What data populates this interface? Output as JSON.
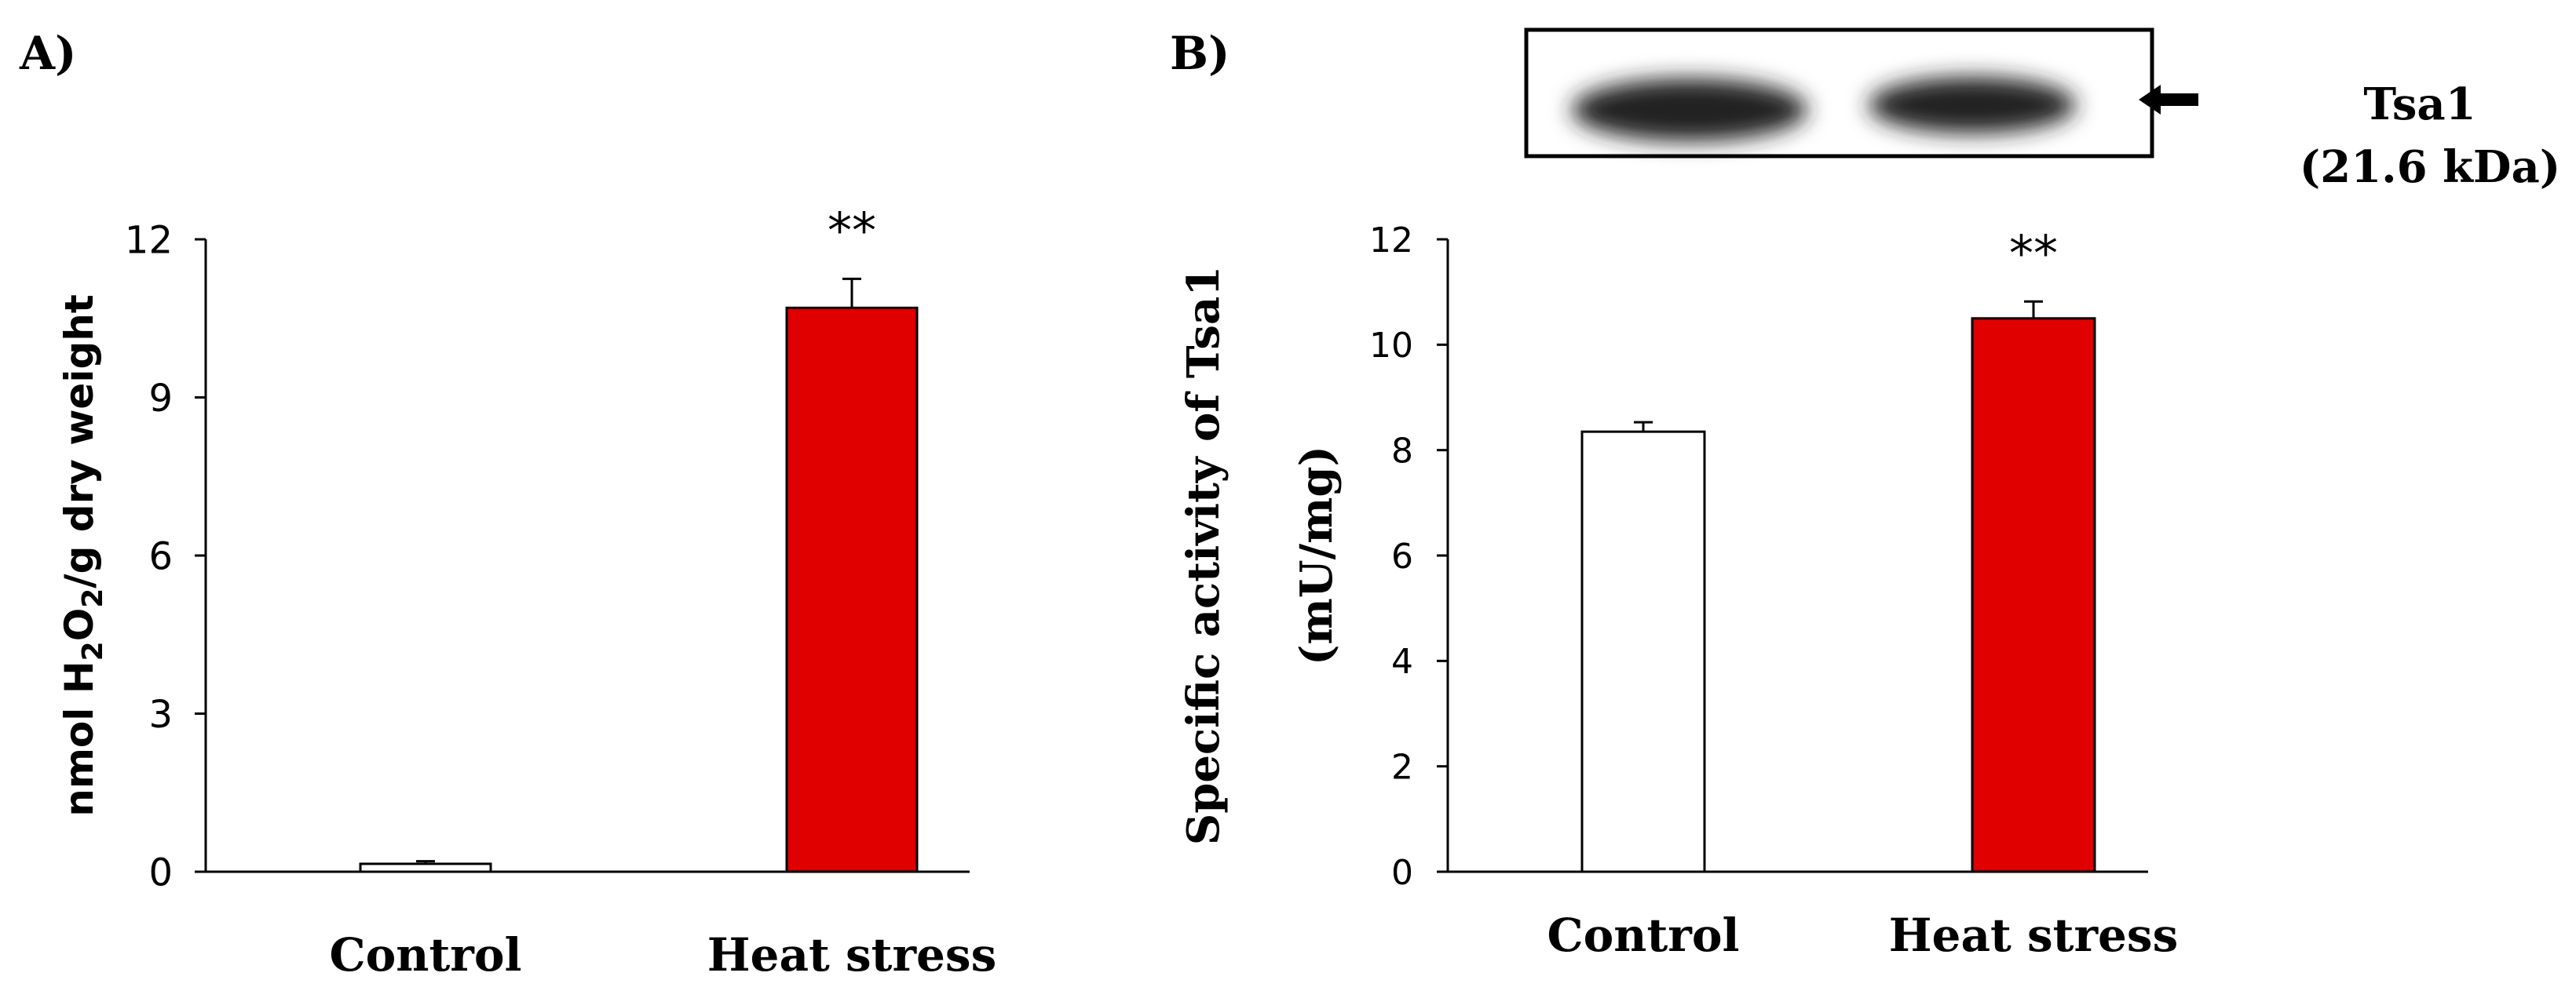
{
  "chart_data": [
    {
      "panel_label": "A)",
      "type": "bar",
      "categories": [
        "Control",
        "Heat stress"
      ],
      "values": [
        0.15,
        10.7
      ],
      "errors": [
        0.05,
        0.55
      ],
      "colors": [
        "#ffffff",
        "#e00000"
      ],
      "significance": [
        "",
        "**"
      ],
      "ylim": [
        0,
        12
      ],
      "yticks": [
        "0",
        "3",
        "6",
        "9",
        "12"
      ],
      "ylabel": {
        "pre": "nmol H",
        "sub1": "2",
        "mid": "O",
        "sub2": "2",
        "post": "/g dry weight"
      },
      "xlabel": "",
      "title": ""
    },
    {
      "panel_label": "B)",
      "type": "bar",
      "categories": [
        "Control",
        "Heat stress"
      ],
      "values": [
        8.35,
        10.5
      ],
      "errors": [
        0.18,
        0.32
      ],
      "colors": [
        "#ffffff",
        "#e00000"
      ],
      "significance": [
        "",
        "**"
      ],
      "ylim": [
        0,
        12
      ],
      "yticks": [
        "0",
        "2",
        "4",
        "6",
        "8",
        "10",
        "12"
      ],
      "ylabel_line1": "Specific activity of Tsa1",
      "ylabel_line2": "(mU/mg)",
      "xlabel": "",
      "title": "",
      "blot": {
        "protein": "Tsa1",
        "size": "(21.6 kDa)",
        "arrow_icon": "left-arrow-icon"
      }
    }
  ]
}
